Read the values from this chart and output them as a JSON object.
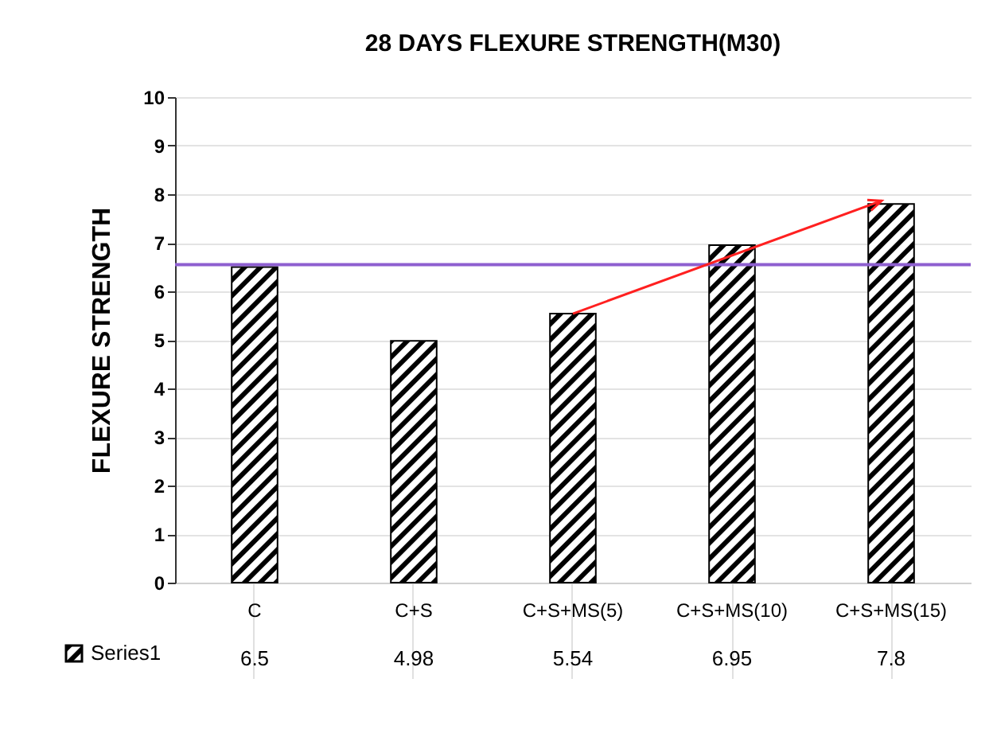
{
  "chart_data": {
    "type": "bar",
    "title": "28 DAYS FLEXURE STRENGTH(M30)",
    "ylabel": "FLEXURE STRENGTH",
    "categories": [
      "C",
      "C+S",
      "C+S+MS(5)",
      "C+S+MS(10)",
      "C+S+MS(15)"
    ],
    "series": [
      {
        "name": "Series1",
        "color": "#000000",
        "values": [
          6.5,
          4.98,
          5.54,
          6.95,
          7.8
        ]
      }
    ],
    "ylim": [
      0,
      10
    ],
    "yticks": [
      0,
      1,
      2,
      3,
      4,
      5,
      6,
      7,
      8,
      9,
      10
    ],
    "grid": "y",
    "legend": "bottom left",
    "data_labels": true,
    "ref_lines": [
      {
        "axis": "y",
        "value": 6.55,
        "color": "#8e5fd0"
      }
    ]
  }
}
